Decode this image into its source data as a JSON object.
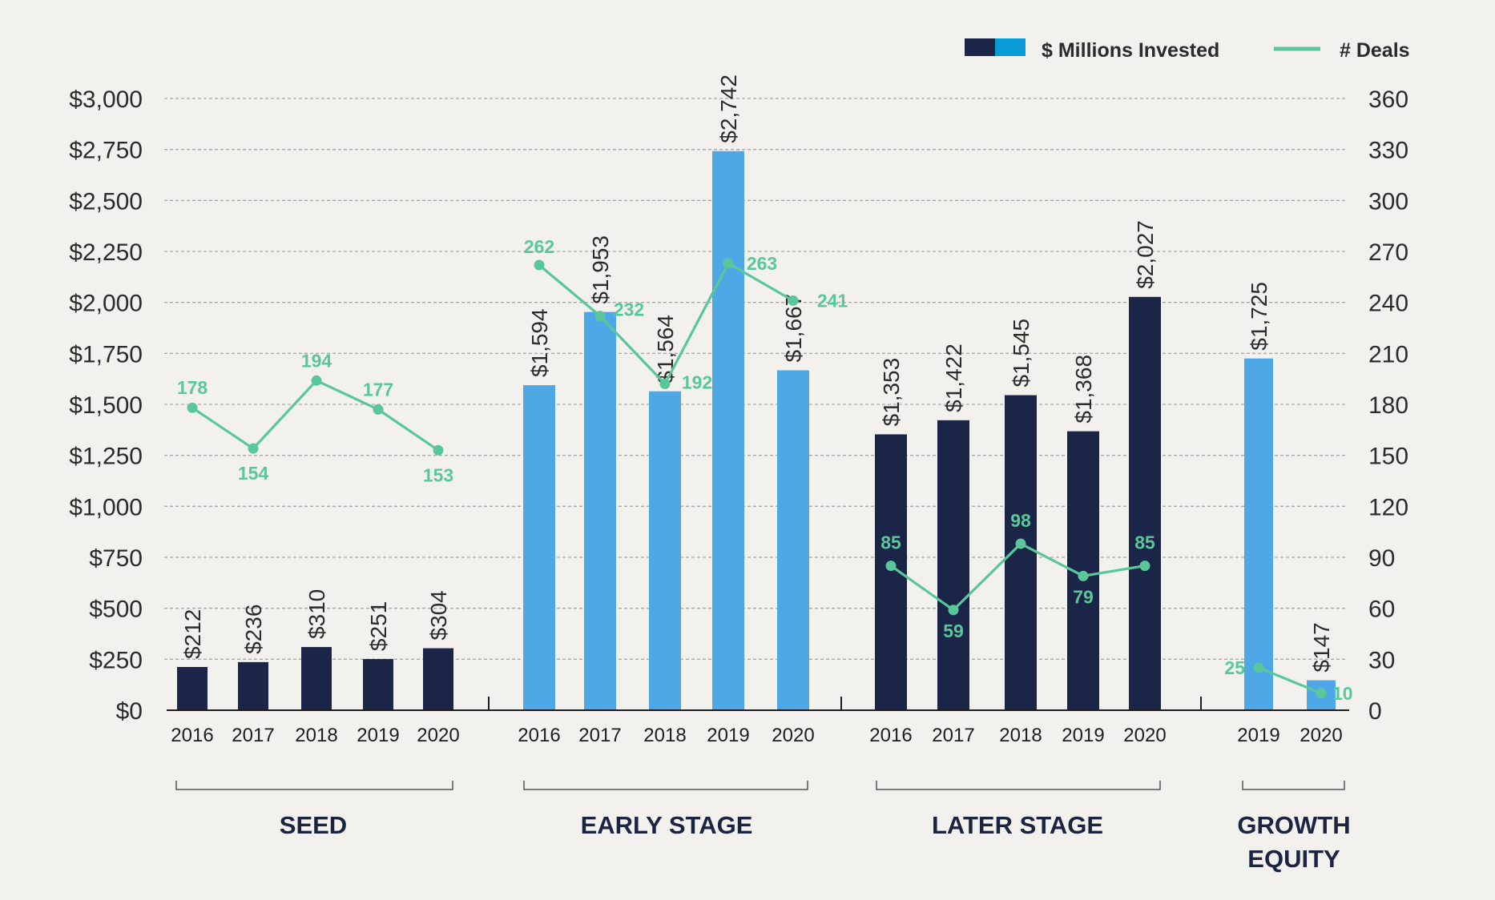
{
  "chart_data": {
    "type": "bar",
    "legend": {
      "position": "top-right",
      "bar_label": "$ Millions Invested",
      "line_label": "# Deals"
    },
    "y_left": {
      "min": 0,
      "max": 3000,
      "ticks": [
        "$0",
        "$250",
        "$500",
        "$750",
        "$1,000",
        "$1,250",
        "$1,500",
        "$1,750",
        "$2,000",
        "$2,250",
        "$2,500",
        "$2,750",
        "$3,000"
      ]
    },
    "y_right": {
      "min": 0,
      "max": 360,
      "ticks": [
        "0",
        "30",
        "60",
        "90",
        "120",
        "150",
        "180",
        "210",
        "240",
        "270",
        "300",
        "330",
        "360"
      ]
    },
    "grid": true,
    "colors": {
      "dark": "#1b2548",
      "light": "#4fa8e6",
      "line": "#5ac79a",
      "legend_accent": "#0a9ad6"
    },
    "groups": [
      {
        "name": "SEED",
        "color": "dark",
        "categories": [
          "2016",
          "2017",
          "2018",
          "2019",
          "2020"
        ],
        "invested": [
          212,
          236,
          310,
          251,
          304
        ],
        "invested_labels": [
          "$212",
          "$236",
          "$310",
          "$251",
          "$304"
        ],
        "deals": [
          178,
          154,
          194,
          177,
          153
        ],
        "deals_labels": [
          "178",
          "154",
          "194",
          "177",
          "153"
        ]
      },
      {
        "name": "EARLY STAGE",
        "color": "light",
        "categories": [
          "2016",
          "2017",
          "2018",
          "2019",
          "2020"
        ],
        "invested": [
          1594,
          1953,
          1564,
          2742,
          1667
        ],
        "invested_labels": [
          "$1,594",
          "$1,953",
          "$1,564",
          "$2,742",
          "$1,667"
        ],
        "deals": [
          262,
          232,
          192,
          263,
          241
        ],
        "deals_labels": [
          "262",
          "232",
          "192",
          "263",
          "241"
        ]
      },
      {
        "name": "LATER STAGE",
        "color": "dark",
        "categories": [
          "2016",
          "2017",
          "2018",
          "2019",
          "2020"
        ],
        "invested": [
          1353,
          1422,
          1545,
          1368,
          2027
        ],
        "invested_labels": [
          "$1,353",
          "$1,422",
          "$1,545",
          "$1,368",
          "$2,027"
        ],
        "deals": [
          85,
          59,
          98,
          79,
          85
        ],
        "deals_labels": [
          "85",
          "59",
          "98",
          "79",
          "85"
        ]
      },
      {
        "name_lines": [
          "GROWTH",
          "EQUITY"
        ],
        "color": "light",
        "categories": [
          "2019",
          "2020"
        ],
        "invested": [
          1725,
          147
        ],
        "invested_labels": [
          "$1,725",
          "$147"
        ],
        "deals": [
          25,
          10
        ],
        "deals_labels": [
          "25",
          "10"
        ]
      }
    ]
  }
}
